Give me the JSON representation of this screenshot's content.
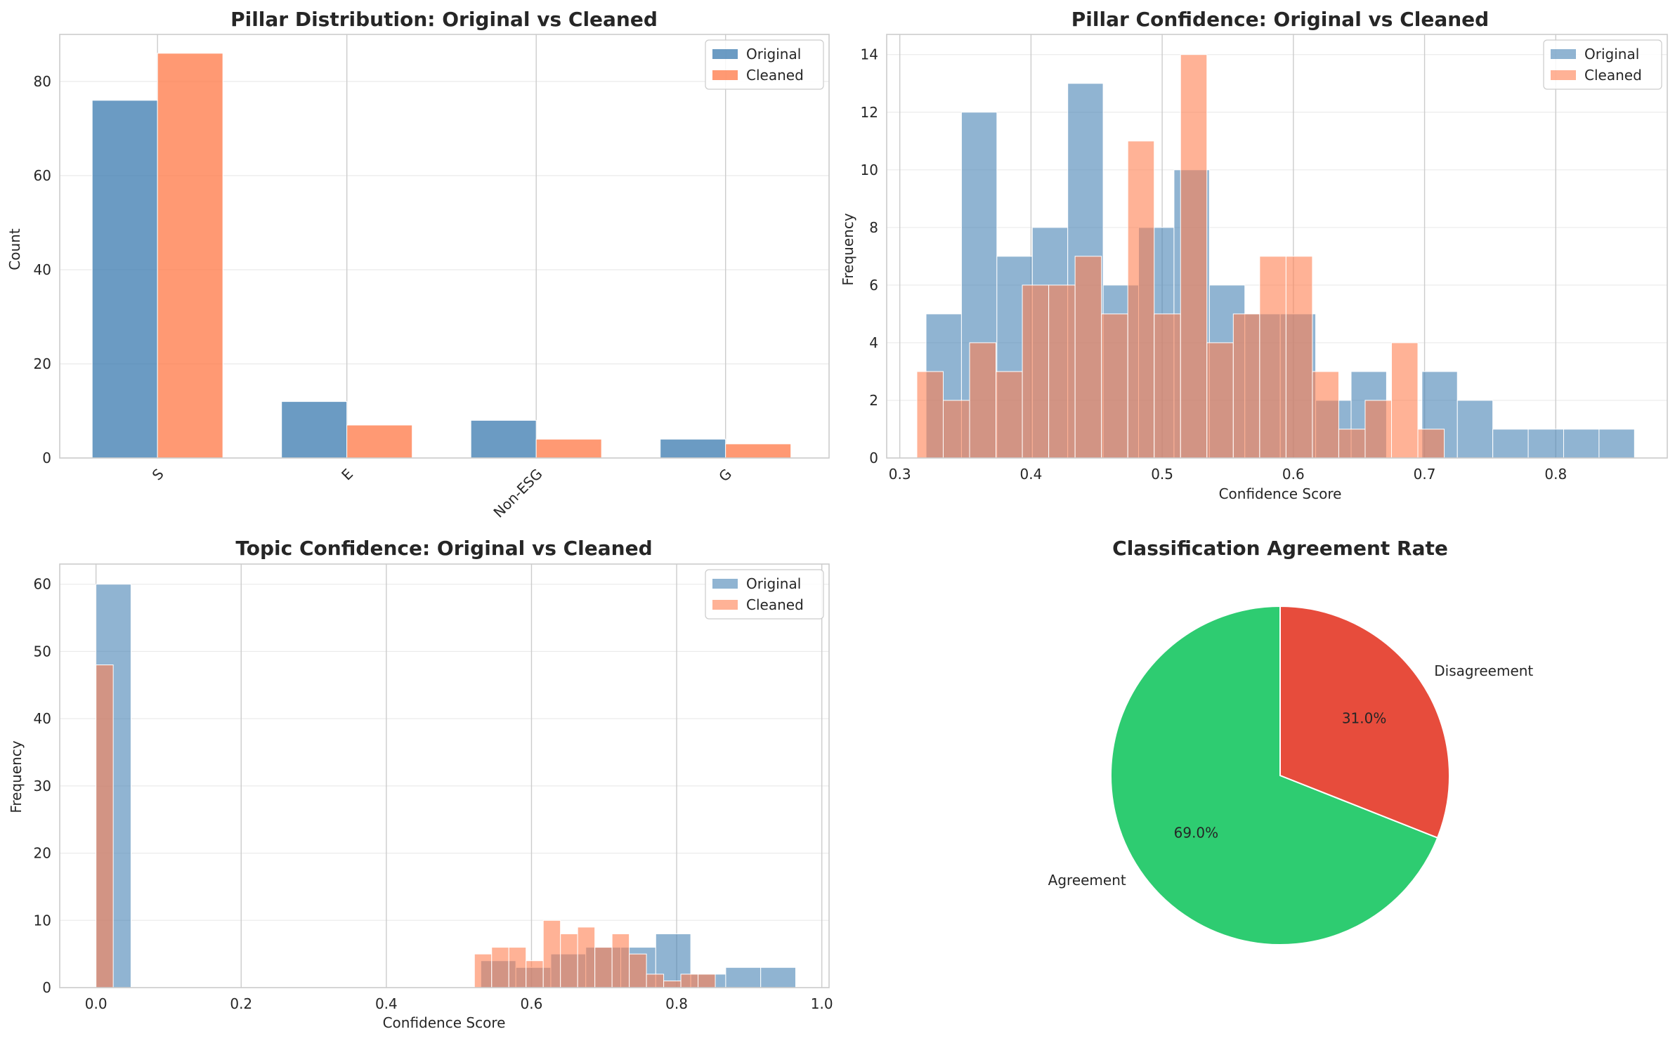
{
  "colors": {
    "original": "#4682b4",
    "cleaned": "#ff7f50",
    "agreement": "#2ecc71",
    "disagreement": "#e74c3c",
    "grid": "#cccccc",
    "spine": "#cccccc"
  },
  "chart_data": [
    {
      "type": "bar",
      "title": "Pillar Distribution: Original vs Cleaned",
      "xlabel": "",
      "ylabel": "Count",
      "categories": [
        "S",
        "E",
        "Non-ESG",
        "G"
      ],
      "series": [
        {
          "name": "Original",
          "values": [
            76,
            12,
            8,
            4
          ]
        },
        {
          "name": "Cleaned",
          "values": [
            86,
            7,
            4,
            3
          ]
        }
      ],
      "ylim": [
        0,
        90
      ],
      "yticks": [
        "0",
        "20",
        "40",
        "60",
        "80"
      ],
      "legend": "top-right",
      "grid": true
    },
    {
      "type": "histogram",
      "title": "Pillar Confidence: Original vs Cleaned",
      "xlabel": "Confidence Score",
      "ylabel": "Frequency",
      "xlim": [
        0.29,
        0.885
      ],
      "ylim": [
        0,
        14.7
      ],
      "xticks": [
        "0.3",
        "0.4",
        "0.5",
        "0.6",
        "0.7",
        "0.8"
      ],
      "yticks": [
        "0",
        "2",
        "4",
        "6",
        "8",
        "10",
        "12",
        "14"
      ],
      "legend": "top-right",
      "grid": true,
      "series": [
        {
          "name": "Original",
          "bin_start": 0.32,
          "bin_width": 0.027,
          "counts": [
            5,
            12,
            7,
            8,
            13,
            6,
            8,
            10,
            6,
            5,
            5,
            2,
            3,
            0,
            3,
            2,
            1,
            1,
            1,
            1
          ]
        },
        {
          "name": "Cleaned",
          "bin_start": 0.313,
          "bin_width": 0.0201,
          "counts": [
            3,
            2,
            4,
            3,
            6,
            6,
            7,
            5,
            11,
            5,
            14,
            4,
            5,
            7,
            7,
            3,
            1,
            2,
            4,
            1
          ]
        }
      ]
    },
    {
      "type": "histogram",
      "title": "Topic Confidence: Original vs Cleaned",
      "xlabel": "Confidence Score",
      "ylabel": "Frequency",
      "xlim": [
        -0.05,
        1.01
      ],
      "ylim": [
        0,
        63
      ],
      "xticks": [
        "0.0",
        "0.2",
        "0.4",
        "0.6",
        "0.8",
        "1.0"
      ],
      "yticks": [
        "0",
        "10",
        "20",
        "30",
        "40",
        "50",
        "60"
      ],
      "legend": "top-right",
      "grid": true,
      "series": [
        {
          "name": "Original",
          "bin_start": 0.0,
          "bin_width": 0.0482,
          "counts": [
            60,
            0,
            0,
            0,
            0,
            0,
            0,
            0,
            0,
            0,
            0,
            4,
            3,
            5,
            6,
            6,
            8,
            2,
            3,
            3
          ]
        },
        {
          "name": "Cleaned",
          "bin_start": 0.0,
          "bin_width": 0.0237,
          "counts": [
            48,
            0,
            0,
            0,
            0,
            0,
            0,
            0,
            0,
            0,
            0,
            0,
            0,
            0,
            0,
            0,
            0,
            0,
            0,
            0,
            0,
            0,
            5,
            6,
            6,
            4,
            10,
            8,
            9,
            6,
            8,
            5,
            2,
            1,
            2,
            2
          ]
        }
      ]
    },
    {
      "type": "pie",
      "title": "Classification Agreement Rate",
      "labels": [
        "Agreement",
        "Disagreement"
      ],
      "values": [
        69.0,
        31.0
      ],
      "pct_labels": [
        "69.0%",
        "31.0%"
      ],
      "startangle": 90
    }
  ]
}
